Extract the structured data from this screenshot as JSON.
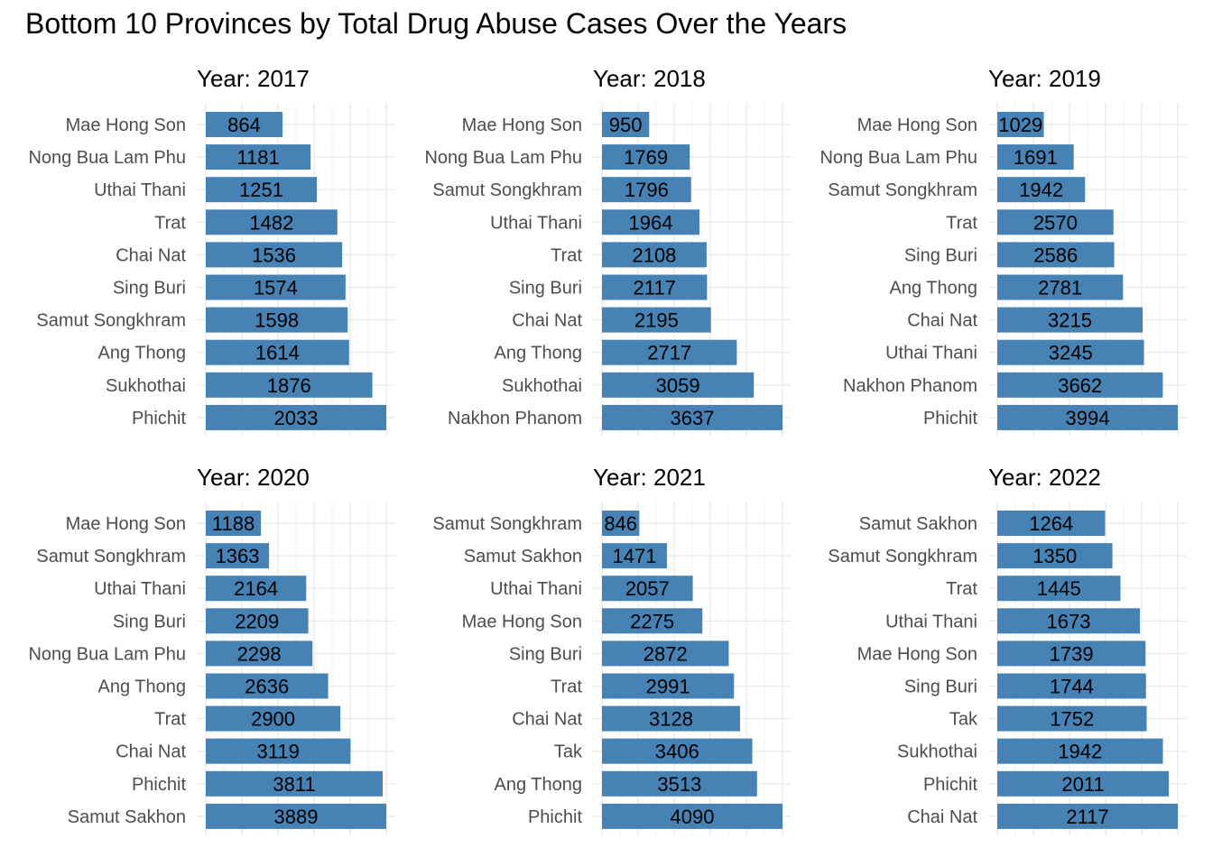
{
  "title": "Bottom 10 Provinces by Total Drug Abuse Cases Over the Years",
  "bar_color": "#4682B4",
  "chart_data": [
    {
      "type": "bar",
      "orientation": "horizontal",
      "title": "Year: 2017",
      "categories": [
        "Mae Hong Son",
        "Nong Bua Lam Phu",
        "Uthai Thani",
        "Trat",
        "Chai Nat",
        "Sing Buri",
        "Samut Songkhram",
        "Ang Thong",
        "Sukhothai",
        "Phichit"
      ],
      "values": [
        864,
        1181,
        1251,
        1482,
        1536,
        1574,
        1598,
        1614,
        1876,
        2033
      ],
      "xlim": [
        0,
        2033
      ],
      "grid": true
    },
    {
      "type": "bar",
      "orientation": "horizontal",
      "title": "Year: 2018",
      "categories": [
        "Mae Hong Son",
        "Nong Bua Lam Phu",
        "Samut Songkhram",
        "Uthai Thani",
        "Trat",
        "Sing Buri",
        "Chai Nat",
        "Ang Thong",
        "Sukhothai",
        "Nakhon Phanom"
      ],
      "values": [
        950,
        1769,
        1796,
        1964,
        2108,
        2117,
        2195,
        2717,
        3059,
        3637
      ],
      "xlim": [
        0,
        3637
      ],
      "grid": true
    },
    {
      "type": "bar",
      "orientation": "horizontal",
      "title": "Year: 2019",
      "categories": [
        "Mae Hong Son",
        "Nong Bua Lam Phu",
        "Samut Songkhram",
        "Trat",
        "Sing Buri",
        "Ang Thong",
        "Chai Nat",
        "Uthai Thani",
        "Nakhon Phanom",
        "Phichit"
      ],
      "values": [
        1029,
        1691,
        1942,
        2570,
        2586,
        2781,
        3215,
        3245,
        3662,
        3994
      ],
      "xlim": [
        0,
        3994
      ],
      "grid": true
    },
    {
      "type": "bar",
      "orientation": "horizontal",
      "title": "Year: 2020",
      "categories": [
        "Mae Hong Son",
        "Samut Songkhram",
        "Uthai Thani",
        "Sing Buri",
        "Nong Bua Lam Phu",
        "Ang Thong",
        "Trat",
        "Chai Nat",
        "Phichit",
        "Samut Sakhon"
      ],
      "values": [
        1188,
        1363,
        2164,
        2209,
        2298,
        2636,
        2900,
        3119,
        3811,
        3889
      ],
      "xlim": [
        0,
        3889
      ],
      "grid": true
    },
    {
      "type": "bar",
      "orientation": "horizontal",
      "title": "Year: 2021",
      "categories": [
        "Samut Songkhram",
        "Samut Sakhon",
        "Uthai Thani",
        "Mae Hong Son",
        "Sing Buri",
        "Trat",
        "Chai Nat",
        "Tak",
        "Ang Thong",
        "Phichit"
      ],
      "values": [
        846,
        1471,
        2057,
        2275,
        2872,
        2991,
        3128,
        3406,
        3513,
        4090
      ],
      "xlim": [
        0,
        4090
      ],
      "grid": true
    },
    {
      "type": "bar",
      "orientation": "horizontal",
      "title": "Year: 2022",
      "categories": [
        "Samut Sakhon",
        "Samut Songkhram",
        "Trat",
        "Uthai Thani",
        "Mae Hong Son",
        "Sing Buri",
        "Tak",
        "Sukhothai",
        "Phichit",
        "Chai Nat"
      ],
      "values": [
        1264,
        1350,
        1445,
        1673,
        1739,
        1744,
        1752,
        1942,
        2011,
        2117
      ],
      "xlim": [
        0,
        2117
      ],
      "grid": true
    }
  ]
}
